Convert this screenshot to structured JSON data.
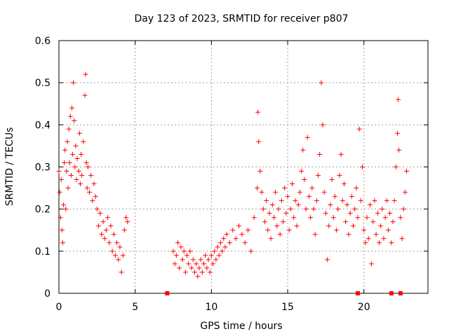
{
  "chart_data": {
    "type": "scatter",
    "title": "Day 123 of 2023, SRMTID for receiver p807",
    "xlabel": "GPS time / hours",
    "ylabel": "SRMTID / TECUs",
    "xlim": [
      0,
      24.2
    ],
    "ylim": [
      0,
      0.6
    ],
    "xticks": [
      0,
      5,
      10,
      15,
      20
    ],
    "yticks": [
      0,
      0.1,
      0.2,
      0.3,
      0.4,
      0.5,
      0.6
    ],
    "xtick_labels": [
      "0",
      "5",
      "10",
      "15",
      "20"
    ],
    "ytick_labels": [
      "0",
      "0.1",
      "0.2",
      "0.3",
      "0.4",
      "0.5",
      "0.6"
    ],
    "grid": true,
    "marker": "+",
    "color": "#ff0000",
    "series": [
      {
        "name": "SRMTID",
        "points": [
          [
            0.0,
            0.29
          ],
          [
            0.05,
            0.24
          ],
          [
            0.1,
            0.18
          ],
          [
            0.15,
            0.27
          ],
          [
            0.2,
            0.15
          ],
          [
            0.25,
            0.12
          ],
          [
            0.3,
            0.21
          ],
          [
            0.35,
            0.31
          ],
          [
            0.4,
            0.34
          ],
          [
            0.45,
            0.2
          ],
          [
            0.5,
            0.29
          ],
          [
            0.55,
            0.36
          ],
          [
            0.6,
            0.25
          ],
          [
            0.65,
            0.39
          ],
          [
            0.7,
            0.31
          ],
          [
            0.75,
            0.42
          ],
          [
            0.8,
            0.28
          ],
          [
            0.85,
            0.44
          ],
          [
            0.9,
            0.33
          ],
          [
            0.95,
            0.5
          ],
          [
            1.0,
            0.41
          ],
          [
            1.05,
            0.3
          ],
          [
            1.1,
            0.35
          ],
          [
            1.15,
            0.27
          ],
          [
            1.2,
            0.32
          ],
          [
            1.3,
            0.29
          ],
          [
            1.35,
            0.38
          ],
          [
            1.4,
            0.26
          ],
          [
            1.45,
            0.33
          ],
          [
            1.5,
            0.28
          ],
          [
            1.6,
            0.36
          ],
          [
            1.7,
            0.47
          ],
          [
            1.75,
            0.52
          ],
          [
            1.8,
            0.31
          ],
          [
            1.85,
            0.25
          ],
          [
            1.9,
            0.3
          ],
          [
            2.0,
            0.24
          ],
          [
            2.1,
            0.28
          ],
          [
            2.2,
            0.22
          ],
          [
            2.3,
            0.26
          ],
          [
            2.4,
            0.23
          ],
          [
            2.5,
            0.2
          ],
          [
            2.6,
            0.16
          ],
          [
            2.7,
            0.19
          ],
          [
            2.8,
            0.14
          ],
          [
            2.9,
            0.17
          ],
          [
            3.0,
            0.13
          ],
          [
            3.1,
            0.15
          ],
          [
            3.2,
            0.18
          ],
          [
            3.3,
            0.12
          ],
          [
            3.4,
            0.16
          ],
          [
            3.5,
            0.1
          ],
          [
            3.6,
            0.14
          ],
          [
            3.7,
            0.09
          ],
          [
            3.8,
            0.12
          ],
          [
            3.9,
            0.08
          ],
          [
            4.0,
            0.11
          ],
          [
            4.1,
            0.05
          ],
          [
            4.2,
            0.09
          ],
          [
            4.3,
            0.15
          ],
          [
            4.4,
            0.18
          ],
          [
            4.5,
            0.17
          ],
          [
            7.5,
            0.1
          ],
          [
            7.6,
            0.07
          ],
          [
            7.7,
            0.09
          ],
          [
            7.8,
            0.12
          ],
          [
            7.9,
            0.06
          ],
          [
            8.0,
            0.11
          ],
          [
            8.1,
            0.08
          ],
          [
            8.2,
            0.1
          ],
          [
            8.3,
            0.05
          ],
          [
            8.4,
            0.09
          ],
          [
            8.5,
            0.07
          ],
          [
            8.6,
            0.1
          ],
          [
            8.7,
            0.06
          ],
          [
            8.8,
            0.08
          ],
          [
            8.9,
            0.05
          ],
          [
            9.0,
            0.07
          ],
          [
            9.1,
            0.04
          ],
          [
            9.2,
            0.06
          ],
          [
            9.3,
            0.08
          ],
          [
            9.4,
            0.05
          ],
          [
            9.5,
            0.07
          ],
          [
            9.6,
            0.09
          ],
          [
            9.7,
            0.06
          ],
          [
            9.8,
            0.08
          ],
          [
            9.9,
            0.05
          ],
          [
            10.0,
            0.09
          ],
          [
            10.1,
            0.07
          ],
          [
            10.2,
            0.1
          ],
          [
            10.3,
            0.08
          ],
          [
            10.4,
            0.11
          ],
          [
            10.5,
            0.09
          ],
          [
            10.6,
            0.12
          ],
          [
            10.7,
            0.1
          ],
          [
            10.8,
            0.13
          ],
          [
            10.9,
            0.11
          ],
          [
            11.0,
            0.14
          ],
          [
            11.2,
            0.12
          ],
          [
            11.4,
            0.15
          ],
          [
            11.6,
            0.13
          ],
          [
            11.8,
            0.16
          ],
          [
            12.0,
            0.14
          ],
          [
            12.2,
            0.12
          ],
          [
            12.4,
            0.15
          ],
          [
            12.6,
            0.1
          ],
          [
            12.8,
            0.18
          ],
          [
            13.0,
            0.25
          ],
          [
            13.05,
            0.43
          ],
          [
            13.1,
            0.36
          ],
          [
            13.2,
            0.29
          ],
          [
            13.3,
            0.24
          ],
          [
            13.4,
            0.2
          ],
          [
            13.5,
            0.17
          ],
          [
            13.6,
            0.22
          ],
          [
            13.7,
            0.15
          ],
          [
            13.8,
            0.19
          ],
          [
            13.9,
            0.13
          ],
          [
            14.0,
            0.21
          ],
          [
            14.1,
            0.18
          ],
          [
            14.2,
            0.24
          ],
          [
            14.3,
            0.16
          ],
          [
            14.4,
            0.2
          ],
          [
            14.5,
            0.14
          ],
          [
            14.6,
            0.22
          ],
          [
            14.7,
            0.17
          ],
          [
            14.8,
            0.25
          ],
          [
            14.9,
            0.19
          ],
          [
            15.0,
            0.23
          ],
          [
            15.1,
            0.15
          ],
          [
            15.2,
            0.2
          ],
          [
            15.3,
            0.26
          ],
          [
            15.4,
            0.18
          ],
          [
            15.5,
            0.22
          ],
          [
            15.6,
            0.16
          ],
          [
            15.7,
            0.21
          ],
          [
            15.8,
            0.24
          ],
          [
            15.9,
            0.29
          ],
          [
            16.0,
            0.34
          ],
          [
            16.1,
            0.27
          ],
          [
            16.2,
            0.2
          ],
          [
            16.3,
            0.37
          ],
          [
            16.4,
            0.23
          ],
          [
            16.5,
            0.18
          ],
          [
            16.6,
            0.25
          ],
          [
            16.7,
            0.2
          ],
          [
            16.8,
            0.14
          ],
          [
            16.9,
            0.22
          ],
          [
            17.0,
            0.28
          ],
          [
            17.1,
            0.33
          ],
          [
            17.2,
            0.5
          ],
          [
            17.3,
            0.4
          ],
          [
            17.4,
            0.24
          ],
          [
            17.5,
            0.19
          ],
          [
            17.6,
            0.08
          ],
          [
            17.7,
            0.16
          ],
          [
            17.8,
            0.21
          ],
          [
            17.9,
            0.27
          ],
          [
            18.0,
            0.18
          ],
          [
            18.1,
            0.23
          ],
          [
            18.2,
            0.15
          ],
          [
            18.3,
            0.2
          ],
          [
            18.4,
            0.28
          ],
          [
            18.5,
            0.33
          ],
          [
            18.6,
            0.22
          ],
          [
            18.7,
            0.26
          ],
          [
            18.8,
            0.17
          ],
          [
            18.9,
            0.21
          ],
          [
            19.0,
            0.14
          ],
          [
            19.1,
            0.19
          ],
          [
            19.2,
            0.23
          ],
          [
            19.3,
            0.16
          ],
          [
            19.4,
            0.2
          ],
          [
            19.5,
            0.25
          ],
          [
            19.6,
            0.18
          ],
          [
            19.7,
            0.39
          ],
          [
            19.8,
            0.22
          ],
          [
            19.9,
            0.3
          ],
          [
            20.0,
            0.15
          ],
          [
            20.1,
            0.12
          ],
          [
            20.2,
            0.18
          ],
          [
            20.3,
            0.13
          ],
          [
            20.4,
            0.21
          ],
          [
            20.5,
            0.07
          ],
          [
            20.6,
            0.17
          ],
          [
            20.7,
            0.22
          ],
          [
            20.8,
            0.14
          ],
          [
            20.9,
            0.19
          ],
          [
            21.0,
            0.12
          ],
          [
            21.1,
            0.16
          ],
          [
            21.2,
            0.2
          ],
          [
            21.3,
            0.13
          ],
          [
            21.4,
            0.18
          ],
          [
            21.5,
            0.22
          ],
          [
            21.6,
            0.15
          ],
          [
            21.7,
            0.19
          ],
          [
            21.8,
            0.12
          ],
          [
            21.9,
            0.17
          ],
          [
            22.0,
            0.22
          ],
          [
            22.1,
            0.3
          ],
          [
            22.2,
            0.38
          ],
          [
            22.25,
            0.46
          ],
          [
            22.3,
            0.34
          ],
          [
            22.4,
            0.18
          ],
          [
            22.5,
            0.13
          ],
          [
            22.6,
            0.2
          ],
          [
            22.7,
            0.24
          ],
          [
            22.8,
            0.29
          ]
        ]
      }
    ],
    "gap_markers_x": [
      7.1,
      19.6,
      21.8,
      22.4
    ]
  }
}
